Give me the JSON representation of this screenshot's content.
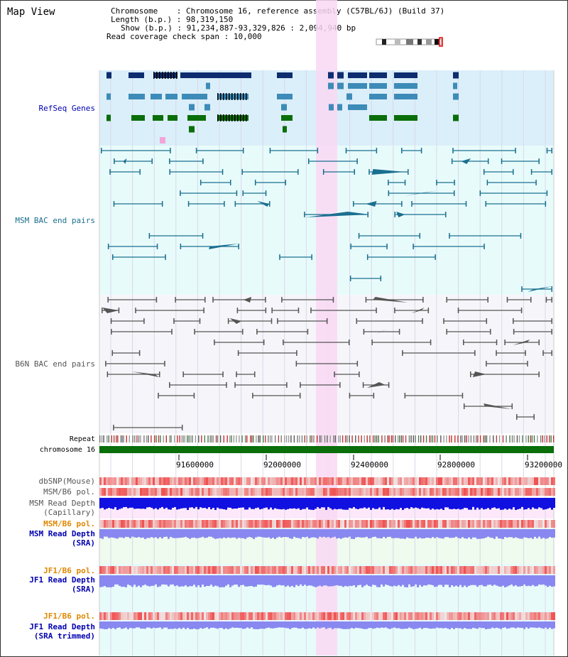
{
  "title": "Map View",
  "info": {
    "chromosome_key": "Chromosome",
    "chromosome_val": "Chromosome 16, reference assembly (C57BL/6J) (Build 37)",
    "length_key": "Length (b.p.)",
    "length_val": "98,319,150",
    "show_key": "Show (b.p.)",
    "show_val": "91,234,887-93,329,826 : 2,094,940 bp",
    "coverage_key": "Read coverage check span",
    "coverage_val": "10,000"
  },
  "tracks": {
    "refseq": "RefSeq Genes",
    "msm_bac": "MSM BAC end pairs",
    "b6n_bac": "B6N BAC end pairs",
    "repeat": "Repeat",
    "chromosome": "chromosome 16",
    "dbsnp": "dbSNP(Mouse)",
    "msm_b6_pol": "MSM/B6 pol.",
    "msm_depth_cap_1": "MSM Read Depth",
    "msm_depth_cap_2": "(Capillary)",
    "msm_b6_pol_2": "MSM/B6 pol.",
    "msm_depth_sra_1": "MSM Read Depth",
    "msm_depth_sra_2": "(SRA)",
    "jf1_b6_pol": "JF1/B6 pol.",
    "jf1_depth_sra_1": "JF1 Read Depth",
    "jf1_depth_sra_2": "(SRA)",
    "jf1_b6_pol_2": "JF1/B6 pol.",
    "jf1_depth_trim_1": "JF1 Read Depth",
    "jf1_depth_trim_2": "(SRA trimmed)"
  },
  "axis": {
    "ticks": [
      "91600000",
      "92000000",
      "92400000",
      "92800000",
      "93200000"
    ]
  },
  "colors": {
    "refseq_bg": "#dbeffa",
    "msm_bg": "#e8fbfb",
    "b6n_bg": "#f6f6fa",
    "highlight": "#f9d8f3",
    "gene_dark": "#0d2d6e",
    "gene_mid": "#3d8bb8",
    "gene_green": "#0a6e0a",
    "bac_msm": "#1a6f8f",
    "bac_b6n": "#555555",
    "depth_blue": "#1010e0",
    "depth_lilac": "#8888f0",
    "label_orange": "#e08800",
    "label_blue": "#0000b0"
  }
}
